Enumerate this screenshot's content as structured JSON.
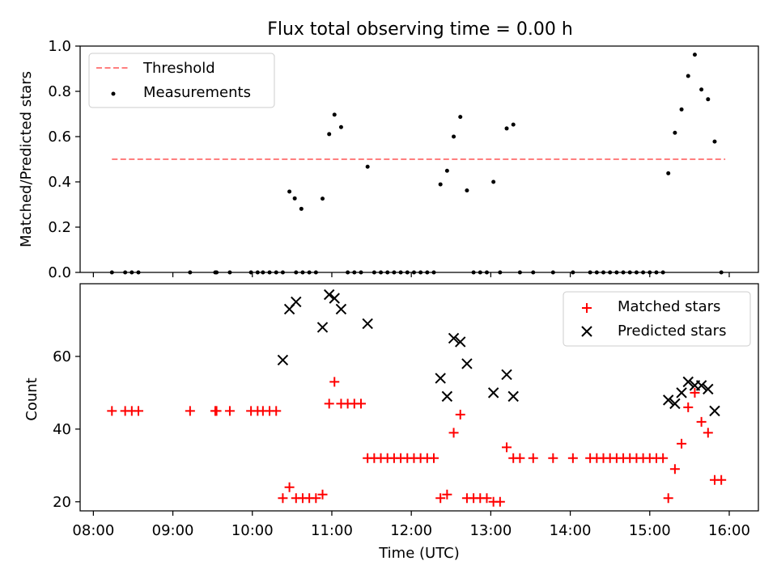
{
  "chart_data": [
    {
      "type": "scatter",
      "title": "Flux total observing time = 0.00 h",
      "ylabel": "Matched/Predicted stars",
      "xlabel": "",
      "xlim": [
        "07:50",
        "16:22"
      ],
      "ylim": [
        0,
        1.0
      ],
      "yticks": [
        "0.0",
        "0.2",
        "0.4",
        "0.6",
        "0.8",
        "1.0"
      ],
      "grid": false,
      "legend_position": "top-left",
      "threshold": {
        "name": "Threshold",
        "color": "#ff7f7f",
        "x_start": "08:14",
        "x_end": "15:57",
        "y": 0.5
      },
      "series": [
        {
          "name": "Measurements",
          "color": "#000000",
          "marker": "dot",
          "points": [
            [
              "08:14",
              0
            ],
            [
              "08:24",
              0
            ],
            [
              "08:29",
              0
            ],
            [
              "08:34",
              0
            ],
            [
              "09:13",
              0
            ],
            [
              "09:32",
              0
            ],
            [
              "09:33",
              0
            ],
            [
              "09:43",
              0
            ],
            [
              "09:59",
              0
            ],
            [
              "10:04",
              0
            ],
            [
              "10:08",
              0
            ],
            [
              "10:13",
              0
            ],
            [
              "10:18",
              0
            ],
            [
              "10:23",
              0
            ],
            [
              "10:28",
              0.357
            ],
            [
              "10:32",
              0.327
            ],
            [
              "10:33",
              0
            ],
            [
              "10:37",
              0.281
            ],
            [
              "10:38",
              0
            ],
            [
              "10:43",
              0
            ],
            [
              "10:48",
              0
            ],
            [
              "10:53",
              0.326
            ],
            [
              "10:58",
              0.611
            ],
            [
              "11:02",
              0.697
            ],
            [
              "11:07",
              0.642
            ],
            [
              "11:12",
              0
            ],
            [
              "11:17",
              0
            ],
            [
              "11:22",
              0
            ],
            [
              "11:27",
              0.467
            ],
            [
              "11:32",
              0
            ],
            [
              "11:37",
              0
            ],
            [
              "11:42",
              0
            ],
            [
              "11:47",
              0
            ],
            [
              "11:52",
              0
            ],
            [
              "11:57",
              0
            ],
            [
              "12:02",
              0
            ],
            [
              "12:07",
              0
            ],
            [
              "12:12",
              0
            ],
            [
              "12:17",
              0
            ],
            [
              "12:22",
              0.389
            ],
            [
              "12:27",
              0.449
            ],
            [
              "12:32",
              0.6
            ],
            [
              "12:37",
              0.687
            ],
            [
              "12:42",
              0.362
            ],
            [
              "12:47",
              0
            ],
            [
              "12:52",
              0
            ],
            [
              "12:57",
              0
            ],
            [
              "13:02",
              0.4
            ],
            [
              "13:07",
              0
            ],
            [
              "13:12",
              0.636
            ],
            [
              "13:17",
              0.653
            ],
            [
              "13:22",
              0
            ],
            [
              "13:32",
              0
            ],
            [
              "13:47",
              0
            ],
            [
              "14:02",
              0
            ],
            [
              "14:15",
              0
            ],
            [
              "14:20",
              0
            ],
            [
              "14:25",
              0
            ],
            [
              "14:30",
              0
            ],
            [
              "14:35",
              0
            ],
            [
              "14:40",
              0
            ],
            [
              "14:45",
              0
            ],
            [
              "14:50",
              0
            ],
            [
              "14:55",
              0
            ],
            [
              "15:00",
              0
            ],
            [
              "15:05",
              0
            ],
            [
              "15:10",
              0
            ],
            [
              "15:14",
              0.438
            ],
            [
              "15:19",
              0.617
            ],
            [
              "15:24",
              0.72
            ],
            [
              "15:29",
              0.868
            ],
            [
              "15:34",
              0.962
            ],
            [
              "15:39",
              0.808
            ],
            [
              "15:44",
              0.765
            ],
            [
              "15:49",
              0.578
            ],
            [
              "15:54",
              0
            ]
          ]
        }
      ]
    },
    {
      "type": "scatter",
      "title": "",
      "ylabel": "Count",
      "xlabel": "Time (UTC)",
      "xlim": [
        "07:50",
        "16:22"
      ],
      "ylim": [
        17.5,
        80
      ],
      "yticks": [
        "20",
        "40",
        "60"
      ],
      "xticks": [
        "08:00",
        "09:00",
        "10:00",
        "11:00",
        "12:00",
        "13:00",
        "14:00",
        "15:00",
        "16:00"
      ],
      "grid": false,
      "legend_position": "top-right",
      "series": [
        {
          "name": "Matched stars",
          "color": "#ff0000",
          "marker": "plus",
          "points": [
            [
              "08:14",
              45
            ],
            [
              "08:24",
              45
            ],
            [
              "08:29",
              45
            ],
            [
              "08:34",
              45
            ],
            [
              "09:13",
              45
            ],
            [
              "09:32",
              45
            ],
            [
              "09:33",
              45
            ],
            [
              "09:43",
              45
            ],
            [
              "09:59",
              45
            ],
            [
              "10:04",
              45
            ],
            [
              "10:08",
              45
            ],
            [
              "10:13",
              45
            ],
            [
              "10:18",
              45
            ],
            [
              "10:23",
              21
            ],
            [
              "10:28",
              24
            ],
            [
              "10:33",
              21
            ],
            [
              "10:38",
              21
            ],
            [
              "10:43",
              21
            ],
            [
              "10:48",
              21
            ],
            [
              "10:53",
              22
            ],
            [
              "10:58",
              47
            ],
            [
              "11:02",
              53
            ],
            [
              "11:07",
              47
            ],
            [
              "11:12",
              47
            ],
            [
              "11:17",
              47
            ],
            [
              "11:22",
              47
            ],
            [
              "11:27",
              32
            ],
            [
              "11:32",
              32
            ],
            [
              "11:37",
              32
            ],
            [
              "11:42",
              32
            ],
            [
              "11:47",
              32
            ],
            [
              "11:52",
              32
            ],
            [
              "11:57",
              32
            ],
            [
              "12:02",
              32
            ],
            [
              "12:07",
              32
            ],
            [
              "12:12",
              32
            ],
            [
              "12:17",
              32
            ],
            [
              "12:22",
              21
            ],
            [
              "12:27",
              22
            ],
            [
              "12:32",
              39
            ],
            [
              "12:37",
              44
            ],
            [
              "12:42",
              21
            ],
            [
              "12:47",
              21
            ],
            [
              "12:52",
              21
            ],
            [
              "12:57",
              21
            ],
            [
              "13:02",
              20
            ],
            [
              "13:07",
              20
            ],
            [
              "13:12",
              35
            ],
            [
              "13:17",
              32
            ],
            [
              "13:22",
              32
            ],
            [
              "13:32",
              32
            ],
            [
              "13:47",
              32
            ],
            [
              "14:02",
              32
            ],
            [
              "14:15",
              32
            ],
            [
              "14:20",
              32
            ],
            [
              "14:25",
              32
            ],
            [
              "14:30",
              32
            ],
            [
              "14:35",
              32
            ],
            [
              "14:40",
              32
            ],
            [
              "14:45",
              32
            ],
            [
              "14:50",
              32
            ],
            [
              "14:55",
              32
            ],
            [
              "15:00",
              32
            ],
            [
              "15:05",
              32
            ],
            [
              "15:10",
              32
            ],
            [
              "15:14",
              21
            ],
            [
              "15:19",
              29
            ],
            [
              "15:24",
              36
            ],
            [
              "15:29",
              46
            ],
            [
              "15:34",
              50
            ],
            [
              "15:39",
              42
            ],
            [
              "15:44",
              39
            ],
            [
              "15:49",
              26
            ],
            [
              "15:54",
              26
            ]
          ]
        },
        {
          "name": "Predicted stars",
          "color": "#000000",
          "marker": "x",
          "points": [
            [
              "10:23",
              59
            ],
            [
              "10:28",
              73
            ],
            [
              "10:33",
              75
            ],
            [
              "10:53",
              68
            ],
            [
              "10:58",
              77
            ],
            [
              "11:02",
              76
            ],
            [
              "11:07",
              73
            ],
            [
              "11:27",
              69
            ],
            [
              "12:22",
              54
            ],
            [
              "12:27",
              49
            ],
            [
              "12:32",
              65
            ],
            [
              "12:37",
              64
            ],
            [
              "12:42",
              58
            ],
            [
              "13:02",
              50
            ],
            [
              "13:12",
              55
            ],
            [
              "13:17",
              49
            ],
            [
              "15:14",
              48
            ],
            [
              "15:19",
              47
            ],
            [
              "15:24",
              50
            ],
            [
              "15:29",
              53
            ],
            [
              "15:34",
              52
            ],
            [
              "15:39",
              52
            ],
            [
              "15:44",
              51
            ],
            [
              "15:49",
              45
            ]
          ]
        }
      ]
    }
  ]
}
